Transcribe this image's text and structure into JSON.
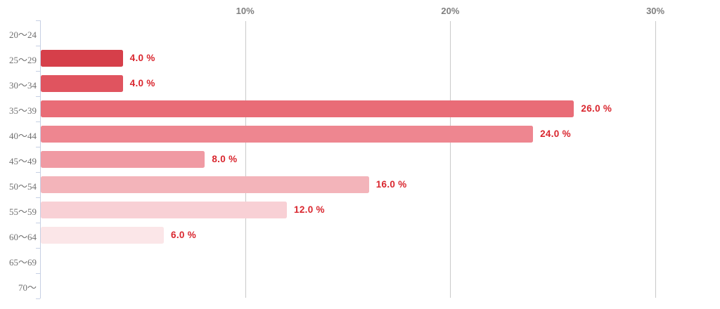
{
  "chart_data": {
    "type": "bar",
    "orientation": "horizontal",
    "title": "",
    "xlabel": "",
    "ylabel": "",
    "categories": [
      "20〜24",
      "25〜29",
      "30〜34",
      "35〜39",
      "40〜44",
      "45〜49",
      "50〜54",
      "55〜59",
      "60〜64",
      "65〜69",
      "70〜"
    ],
    "values": [
      0,
      4.0,
      4.0,
      26.0,
      24.0,
      8.0,
      16.0,
      12.0,
      6.0,
      0,
      0
    ],
    "value_labels": [
      "",
      "4.0 %",
      "4.0 %",
      "26.0 %",
      "24.0 %",
      "8.0 %",
      "16.0 %",
      "12.0 %",
      "6.0 %",
      "",
      ""
    ],
    "bar_colors": [
      "",
      "#d63f4a",
      "#e0545f",
      "#e96c77",
      "#ee8690",
      "#f09aa3",
      "#f3b4ba",
      "#f8d0d5",
      "#fbe6e8",
      "",
      ""
    ],
    "x_ticks": [
      {
        "label": "10%",
        "value": 10
      },
      {
        "label": "20%",
        "value": 20
      },
      {
        "label": "30%",
        "value": 30
      }
    ],
    "xlim": [
      0,
      32.8
    ],
    "grid": true,
    "legend": "none",
    "colors": {
      "value_label": "#d9262e",
      "gridline": "#c9c9c9",
      "axis_line": "#c6d0e4",
      "x_tick_label": "#7f7f7f",
      "y_tick_label": "#707070",
      "background": "#ffffff"
    }
  }
}
